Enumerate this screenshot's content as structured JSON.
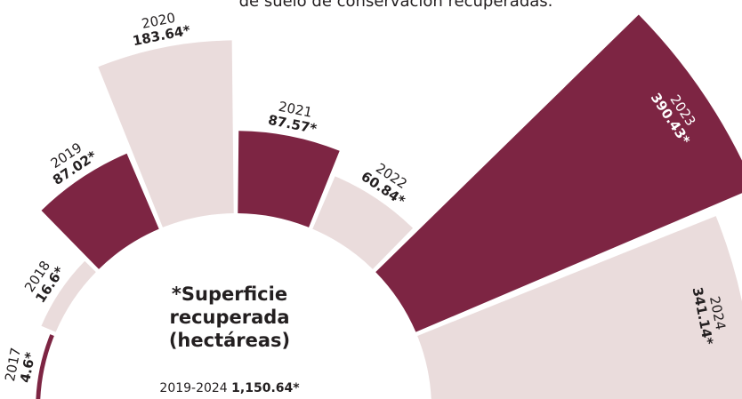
{
  "chart_data": {
    "type": "radial-bar",
    "title": "de suelo de conservación recuperadas.",
    "categories": [
      "2017",
      "2018",
      "2019",
      "2020",
      "2021",
      "2022",
      "2023",
      "2024"
    ],
    "values": [
      4.6,
      16.6,
      87.02,
      183.64,
      87.57,
      60.84,
      390.43,
      341.14
    ],
    "value_labels": [
      "4.6*",
      "16.6*",
      "87.02*",
      "183.64*",
      "87.57*",
      "60.84*",
      "390.43*",
      "341.14*"
    ],
    "colors": [
      "#7d2543",
      "#eadcdc",
      "#7d2543",
      "#eadcdc",
      "#7d2543",
      "#eadcdc",
      "#7d2543",
      "#eadcdc"
    ],
    "center_lines": [
      "*Superficie",
      "recuperada",
      "(hectáreas)"
    ],
    "total": {
      "period": "2019-2024",
      "value": 1150.64,
      "label": "1,150.64*"
    }
  }
}
